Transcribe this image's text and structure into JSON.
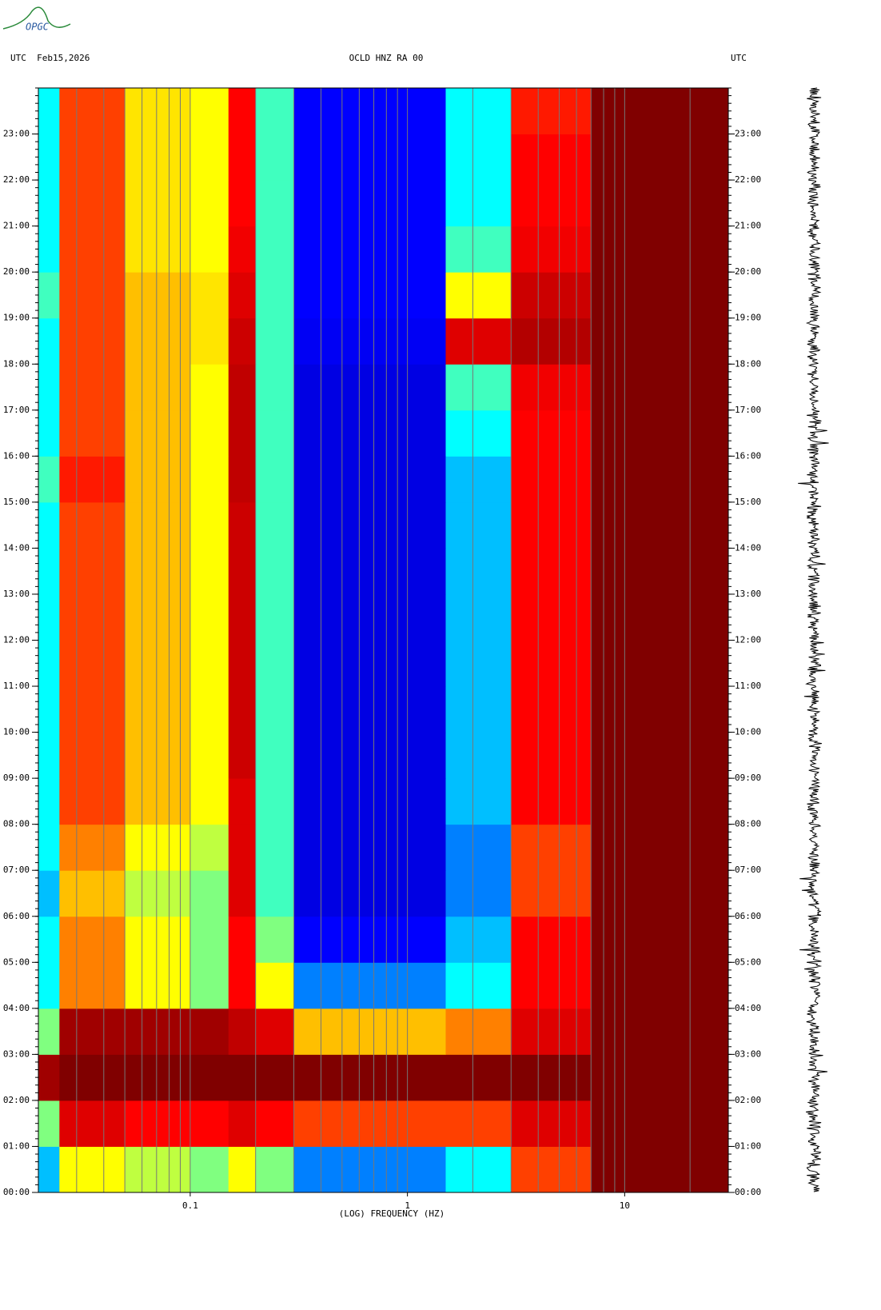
{
  "logo": "OPGC",
  "chart_data": {
    "type": "spectrogram",
    "header_left": "UTC  Feb15,2026",
    "title": "OCLD HNZ RA 00",
    "header_right": "UTC",
    "x_label": "(LOG) FREQUENCY (HZ)",
    "x_log": true,
    "xlim": [
      0.02,
      30
    ],
    "xticks": [
      0.1,
      1,
      10
    ],
    "xgrid": [
      0.03,
      0.04,
      0.05,
      0.06,
      0.07,
      0.08,
      0.09,
      0.1,
      0.2,
      0.3,
      0.4,
      0.5,
      0.6,
      0.7,
      0.8,
      0.9,
      1,
      2,
      3,
      4,
      5,
      6,
      7,
      8,
      9,
      10,
      20
    ],
    "ylim": [
      0,
      24
    ],
    "yticks": [
      {
        "value": 0,
        "label": "00:00"
      },
      {
        "value": 1,
        "label": "01:00"
      },
      {
        "value": 2,
        "label": "02:00"
      },
      {
        "value": 3,
        "label": "03:00"
      },
      {
        "value": 4,
        "label": "04:00"
      },
      {
        "value": 5,
        "label": "05:00"
      },
      {
        "value": 6,
        "label": "06:00"
      },
      {
        "value": 7,
        "label": "07:00"
      },
      {
        "value": 8,
        "label": "08:00"
      },
      {
        "value": 9,
        "label": "09:00"
      },
      {
        "value": 10,
        "label": "10:00"
      },
      {
        "value": 11,
        "label": "11:00"
      },
      {
        "value": 12,
        "label": "12:00"
      },
      {
        "value": 13,
        "label": "13:00"
      },
      {
        "value": 14,
        "label": "14:00"
      },
      {
        "value": 15,
        "label": "15:00"
      },
      {
        "value": 16,
        "label": "16:00"
      },
      {
        "value": 17,
        "label": "17:00"
      },
      {
        "value": 18,
        "label": "18:00"
      },
      {
        "value": 19,
        "label": "19:00"
      },
      {
        "value": 20,
        "label": "20:00"
      },
      {
        "value": 21,
        "label": "21:00"
      },
      {
        "value": 22,
        "label": "22:00"
      },
      {
        "value": 23,
        "label": "23:00"
      }
    ],
    "x_edges": [
      0.02,
      0.025,
      0.05,
      0.1,
      0.15,
      0.2,
      0.3,
      1.5,
      3,
      7,
      30
    ],
    "y_edges": [
      0,
      1,
      2,
      3,
      4,
      5,
      6,
      7,
      8,
      9,
      10,
      11,
      12,
      13,
      14,
      15,
      16,
      17,
      18,
      19,
      20,
      21,
      22,
      23,
      24
    ],
    "colormap": [
      "#00008f",
      "#0000ff",
      "#00ffff",
      "#ffff00",
      "#ff0000",
      "#800000"
    ],
    "values": [
      [
        0.35,
        0.6,
        0.55,
        0.5,
        0.6,
        0.5,
        0.3,
        0.4,
        0.75,
        1.0
      ],
      [
        0.5,
        0.85,
        0.8,
        0.8,
        0.85,
        0.8,
        0.75,
        0.75,
        0.85,
        1.0
      ],
      [
        0.95,
        1.0,
        1.0,
        1.0,
        1.0,
        1.0,
        1.0,
        1.0,
        1.0,
        1.0
      ],
      [
        0.5,
        0.95,
        0.95,
        0.95,
        0.9,
        0.85,
        0.65,
        0.7,
        0.85,
        1.0
      ],
      [
        0.4,
        0.7,
        0.6,
        0.5,
        0.8,
        0.6,
        0.3,
        0.4,
        0.8,
        1.0
      ],
      [
        0.4,
        0.7,
        0.6,
        0.5,
        0.8,
        0.5,
        0.2,
        0.35,
        0.8,
        1.0
      ],
      [
        0.35,
        0.65,
        0.55,
        0.5,
        0.85,
        0.45,
        0.15,
        0.3,
        0.75,
        1.0
      ],
      [
        0.4,
        0.7,
        0.6,
        0.55,
        0.85,
        0.45,
        0.15,
        0.3,
        0.75,
        1.0
      ],
      [
        0.4,
        0.75,
        0.65,
        0.6,
        0.85,
        0.45,
        0.15,
        0.35,
        0.8,
        1.0
      ],
      [
        0.4,
        0.75,
        0.65,
        0.6,
        0.88,
        0.45,
        0.15,
        0.35,
        0.8,
        1.0
      ],
      [
        0.4,
        0.75,
        0.65,
        0.6,
        0.88,
        0.45,
        0.15,
        0.35,
        0.8,
        1.0
      ],
      [
        0.4,
        0.75,
        0.65,
        0.6,
        0.88,
        0.45,
        0.15,
        0.35,
        0.8,
        1.0
      ],
      [
        0.4,
        0.75,
        0.65,
        0.6,
        0.88,
        0.45,
        0.15,
        0.35,
        0.8,
        1.0
      ],
      [
        0.4,
        0.75,
        0.65,
        0.6,
        0.88,
        0.45,
        0.15,
        0.35,
        0.8,
        1.0
      ],
      [
        0.4,
        0.75,
        0.65,
        0.6,
        0.88,
        0.45,
        0.15,
        0.35,
        0.8,
        1.0
      ],
      [
        0.45,
        0.78,
        0.65,
        0.6,
        0.9,
        0.45,
        0.15,
        0.35,
        0.8,
        1.0
      ],
      [
        0.4,
        0.75,
        0.65,
        0.6,
        0.9,
        0.45,
        0.15,
        0.4,
        0.8,
        1.0
      ],
      [
        0.4,
        0.75,
        0.65,
        0.6,
        0.9,
        0.45,
        0.15,
        0.45,
        0.82,
        1.0
      ],
      [
        0.4,
        0.75,
        0.65,
        0.62,
        0.88,
        0.45,
        0.18,
        0.85,
        0.92,
        1.0
      ],
      [
        0.45,
        0.75,
        0.65,
        0.62,
        0.85,
        0.45,
        0.2,
        0.6,
        0.88,
        1.0
      ],
      [
        0.4,
        0.75,
        0.62,
        0.6,
        0.82,
        0.45,
        0.2,
        0.45,
        0.82,
        1.0
      ],
      [
        0.4,
        0.75,
        0.62,
        0.6,
        0.8,
        0.45,
        0.2,
        0.4,
        0.8,
        1.0
      ],
      [
        0.4,
        0.75,
        0.62,
        0.6,
        0.8,
        0.45,
        0.2,
        0.4,
        0.8,
        1.0
      ],
      [
        0.4,
        0.75,
        0.62,
        0.6,
        0.8,
        0.45,
        0.2,
        0.4,
        0.78,
        1.0
      ]
    ]
  }
}
